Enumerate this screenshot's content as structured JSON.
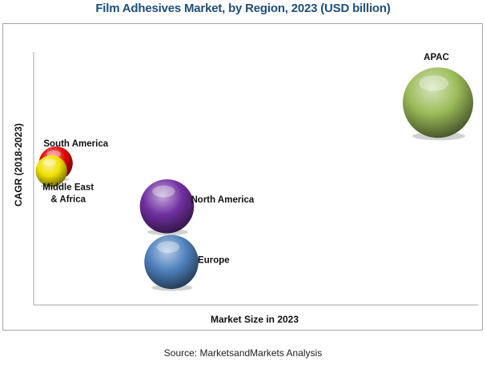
{
  "title": "Film Adhesives Market, by Region, 2023 (USD billion)",
  "source": "Source: MarketsandMarkets Analysis",
  "chart_data": {
    "type": "bubble",
    "title": "Film Adhesives Market, by Region, 2023 (USD billion)",
    "xlabel": "Market Size in 2023",
    "ylabel": "CAGR (2018-2023)",
    "grid": false,
    "legend": "none",
    "axes_ticks": "none",
    "series": [
      {
        "name": "APAC",
        "x": 0.91,
        "y": 0.8,
        "size": 1.0,
        "color": "#9bbb59"
      },
      {
        "name": "South America",
        "x": 0.05,
        "y": 0.56,
        "size": 0.23,
        "color": "#e00000"
      },
      {
        "name": "Middle East & Africa",
        "x": 0.04,
        "y": 0.53,
        "size": 0.2,
        "color": "#f0e000"
      },
      {
        "name": "North America",
        "x": 0.3,
        "y": 0.39,
        "size": 0.59,
        "color": "#7030a0"
      },
      {
        "name": "Europe",
        "x": 0.31,
        "y": 0.17,
        "size": 0.59,
        "color": "#4f81bd"
      }
    ]
  }
}
